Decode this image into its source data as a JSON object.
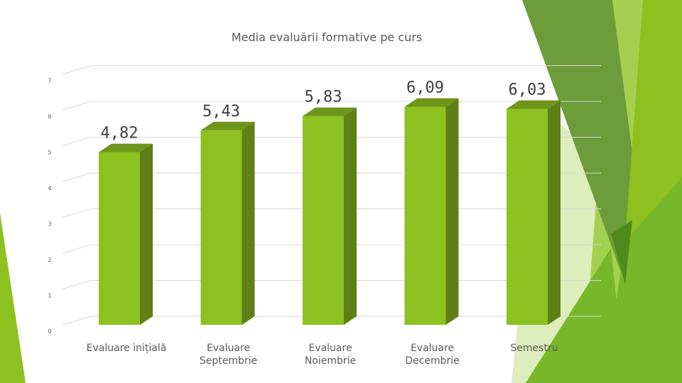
{
  "slide": {
    "colors": {
      "bar_front": "#8cc11f",
      "bar_side": "#5f7f17",
      "bar_top": "#6f951a",
      "grid": "#d9d9d9",
      "text": "#595959",
      "label": "#404040",
      "accent_dark": "#4f8a1e",
      "accent_mid": "#76b82a",
      "accent_light": "#a3d14f",
      "accent_pale": "#d8eab0"
    }
  },
  "chart_data": {
    "type": "bar",
    "title": "Media evaluării formative pe curs",
    "categories": [
      [
        "Evaluare inițială"
      ],
      [
        "Evaluare",
        "Septembrie"
      ],
      [
        "Evaluare",
        "Noiembrie"
      ],
      [
        "Evaluare",
        "Decembrie"
      ],
      [
        "Semestru"
      ]
    ],
    "values": [
      4.82,
      5.43,
      5.83,
      6.09,
      6.03
    ],
    "data_labels": [
      "4,82",
      "5,43",
      "5,83",
      "6,09",
      "6,03"
    ],
    "yticks": [
      "0",
      "1",
      "2",
      "3",
      "4",
      "5",
      "6",
      "7"
    ],
    "ylim": [
      0,
      7
    ],
    "grid": true,
    "style": "3d-column"
  }
}
